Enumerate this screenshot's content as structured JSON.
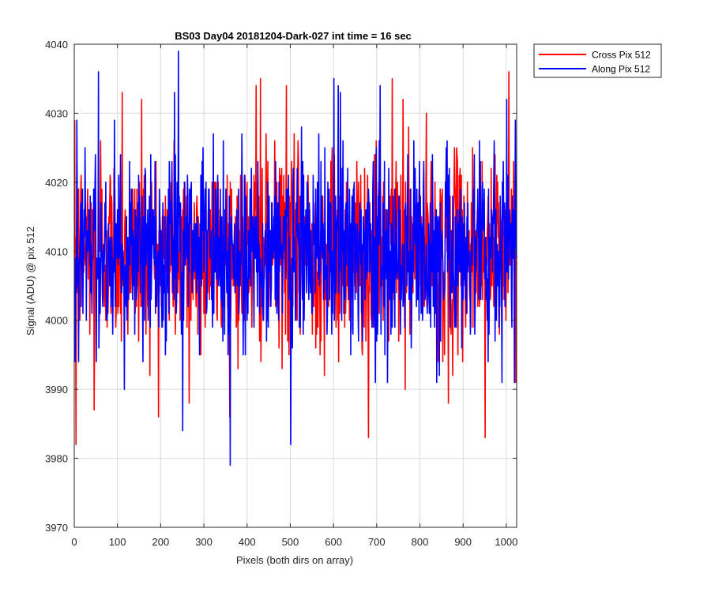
{
  "figure": {
    "background": "#ffffff",
    "axes_color": "#262626",
    "grid_color": "#d9d9d9"
  },
  "chart_data": {
    "type": "line",
    "title": "BS03 Day04 20181204-Dark-027 int time = 16 sec",
    "xlabel": "Pixels (both dirs on array)",
    "ylabel": "Signal (ADU) @ pix 512",
    "xlim": [
      0,
      1024
    ],
    "ylim": [
      3970,
      4040
    ],
    "xticks": [
      0,
      100,
      200,
      300,
      400,
      500,
      600,
      700,
      800,
      900,
      1000
    ],
    "yticks": [
      3970,
      3980,
      3990,
      4000,
      4010,
      4020,
      4030,
      4040
    ],
    "grid": true,
    "legend_position": "outside-top-right",
    "series_mean": 4010,
    "series_noise_sd": 7,
    "series_count_points": 1024,
    "series": [
      {
        "name": "Cross Pix 512",
        "color": "#ff0000",
        "notable_points": [
          {
            "x": 3,
            "y": 3982
          },
          {
            "x": 45,
            "y": 3987
          },
          {
            "x": 60,
            "y": 4026
          },
          {
            "x": 110,
            "y": 4033
          },
          {
            "x": 155,
            "y": 4032
          },
          {
            "x": 265,
            "y": 3988
          },
          {
            "x": 420,
            "y": 4034
          },
          {
            "x": 430,
            "y": 4035
          },
          {
            "x": 490,
            "y": 4034
          },
          {
            "x": 680,
            "y": 3983
          },
          {
            "x": 735,
            "y": 4035
          },
          {
            "x": 760,
            "y": 4032
          },
          {
            "x": 865,
            "y": 3988
          },
          {
            "x": 950,
            "y": 3983
          },
          {
            "x": 1005,
            "y": 4036
          }
        ]
      },
      {
        "name": "Along Pix 512",
        "color": "#0000ff",
        "notable_points": [
          {
            "x": 5,
            "y": 4029
          },
          {
            "x": 55,
            "y": 4036
          },
          {
            "x": 240,
            "y": 4039
          },
          {
            "x": 250,
            "y": 3984
          },
          {
            "x": 360,
            "y": 3979
          },
          {
            "x": 500,
            "y": 3982
          },
          {
            "x": 565,
            "y": 4027
          },
          {
            "x": 600,
            "y": 4035
          },
          {
            "x": 615,
            "y": 4033
          },
          {
            "x": 1000,
            "y": 4032
          },
          {
            "x": 1020,
            "y": 4029
          }
        ]
      }
    ]
  }
}
